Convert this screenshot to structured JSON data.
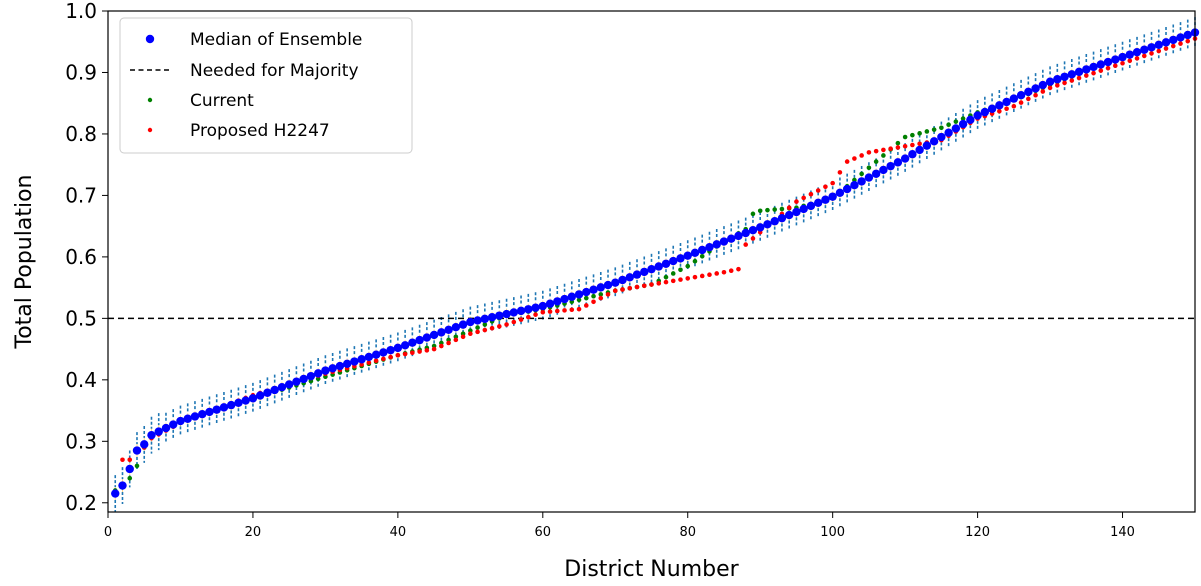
{
  "chart_data": {
    "type": "scatter",
    "xlabel": "District Number",
    "ylabel": "Total Population",
    "xlim": [
      0,
      150
    ],
    "ylim": [
      0.185,
      1.0
    ],
    "xticks": [
      0,
      20,
      40,
      60,
      80,
      100,
      120,
      140
    ],
    "yticks": [
      0.2,
      0.3,
      0.4,
      0.5,
      0.6,
      0.7,
      0.8,
      0.9,
      1.0
    ],
    "xtick_labels": [
      "0",
      "20",
      "40",
      "60",
      "80",
      "100",
      "120",
      "140"
    ],
    "ytick_labels": [
      "0.2",
      "0.3",
      "0.4",
      "0.5",
      "0.6",
      "0.7",
      "0.8",
      "0.9",
      "1.0"
    ],
    "grid": false,
    "legend_position": "top-left",
    "legend": [
      {
        "label": "Median of Ensemble",
        "marker": "dot",
        "color": "#0000ff"
      },
      {
        "label": "Needed for Majority",
        "marker": "dashed-line",
        "color": "#000000"
      },
      {
        "label": "Current",
        "marker": "small-dot",
        "color": "#008000"
      },
      {
        "label": "Proposed H2247",
        "marker": "small-dot",
        "color": "#ff0000"
      }
    ],
    "majority_line": {
      "y": 0.5,
      "color": "#000000",
      "style": "dashed"
    },
    "colors": {
      "median": "#0000ff",
      "current": "#008000",
      "proposed": "#ff0000",
      "box_whisker": "#1f77b4",
      "box_median": "#ffa500"
    },
    "median_ensemble": {
      "x": [
        1,
        2,
        3,
        4,
        5,
        6,
        10,
        20,
        30,
        40,
        50,
        60,
        70,
        80,
        90,
        100,
        110,
        120,
        130,
        140,
        150
      ],
      "y": [
        0.215,
        0.228,
        0.255,
        0.285,
        0.295,
        0.31,
        0.333,
        0.37,
        0.415,
        0.452,
        0.494,
        0.52,
        0.558,
        0.602,
        0.648,
        0.698,
        0.76,
        0.83,
        0.885,
        0.925,
        0.965
      ]
    },
    "current": {
      "x": [
        1,
        2,
        3,
        4,
        5,
        6,
        10,
        20,
        30,
        40,
        45,
        50,
        55,
        60,
        70,
        75,
        80,
        85,
        88,
        89,
        90,
        95,
        100,
        105,
        110,
        115,
        120,
        125,
        130,
        140,
        150
      ],
      "y": [
        0.22,
        0.225,
        0.24,
        0.26,
        0.29,
        0.31,
        0.33,
        0.37,
        0.405,
        0.44,
        0.455,
        0.48,
        0.505,
        0.515,
        0.545,
        0.555,
        0.585,
        0.625,
        0.645,
        0.67,
        0.675,
        0.68,
        0.695,
        0.745,
        0.795,
        0.81,
        0.835,
        0.855,
        0.88,
        0.925,
        0.965
      ]
    },
    "proposed": {
      "x": [
        1,
        2,
        3,
        4,
        5,
        6,
        10,
        20,
        30,
        40,
        45,
        50,
        55,
        60,
        65,
        70,
        75,
        80,
        85,
        87,
        88,
        90,
        95,
        100,
        102,
        105,
        110,
        115,
        120,
        125,
        130,
        140,
        150
      ],
      "y": [
        0.215,
        0.27,
        0.27,
        0.285,
        0.29,
        0.305,
        0.33,
        0.375,
        0.41,
        0.44,
        0.45,
        0.475,
        0.49,
        0.51,
        0.515,
        0.545,
        0.555,
        0.565,
        0.575,
        0.58,
        0.62,
        0.64,
        0.69,
        0.72,
        0.755,
        0.77,
        0.78,
        0.79,
        0.825,
        0.845,
        0.875,
        0.915,
        0.955
      ]
    }
  }
}
